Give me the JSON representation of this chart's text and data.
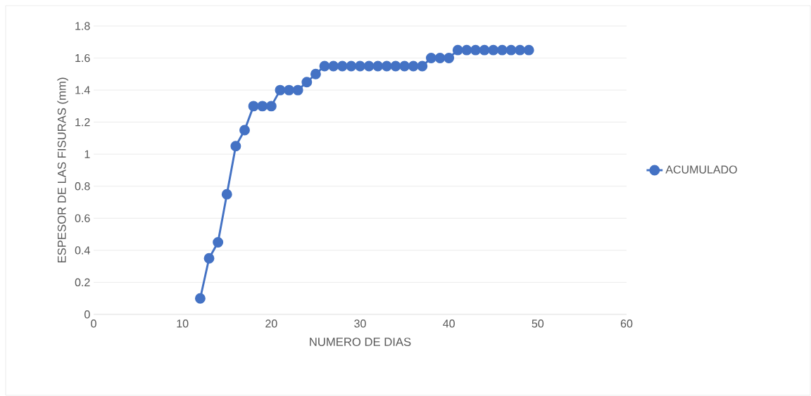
{
  "chart_data": {
    "type": "line",
    "xlabel": "NUMERO DE DIAS",
    "ylabel": "ESPESOR DE LAS FISURAS (mm)",
    "x": [
      12,
      13,
      14,
      15,
      16,
      17,
      18,
      19,
      20,
      21,
      22,
      23,
      24,
      25,
      26,
      27,
      28,
      29,
      30,
      31,
      32,
      33,
      34,
      35,
      36,
      37,
      38,
      39,
      40,
      41,
      42,
      43,
      44,
      45,
      46,
      47,
      48,
      49
    ],
    "series": [
      {
        "name": "ACUMULADO",
        "color": "#4472c4",
        "values": [
          0.1,
          0.35,
          0.45,
          0.75,
          1.05,
          1.15,
          1.3,
          1.3,
          1.3,
          1.4,
          1.4,
          1.4,
          1.45,
          1.5,
          1.55,
          1.55,
          1.55,
          1.55,
          1.55,
          1.55,
          1.55,
          1.55,
          1.55,
          1.55,
          1.55,
          1.55,
          1.6,
          1.6,
          1.6,
          1.65,
          1.65,
          1.65,
          1.65,
          1.65,
          1.65,
          1.65,
          1.65,
          1.65
        ]
      }
    ],
    "xlim": [
      0,
      60
    ],
    "xticks": [
      0,
      10,
      20,
      30,
      40,
      50,
      60
    ],
    "ylim": [
      0,
      1.8
    ],
    "yticks": [
      0,
      0.2,
      0.4,
      0.6,
      0.8,
      1,
      1.2,
      1.4,
      1.6,
      1.8
    ],
    "grid": "y",
    "legend": "right",
    "marker": "circle",
    "line_style": "solid"
  }
}
